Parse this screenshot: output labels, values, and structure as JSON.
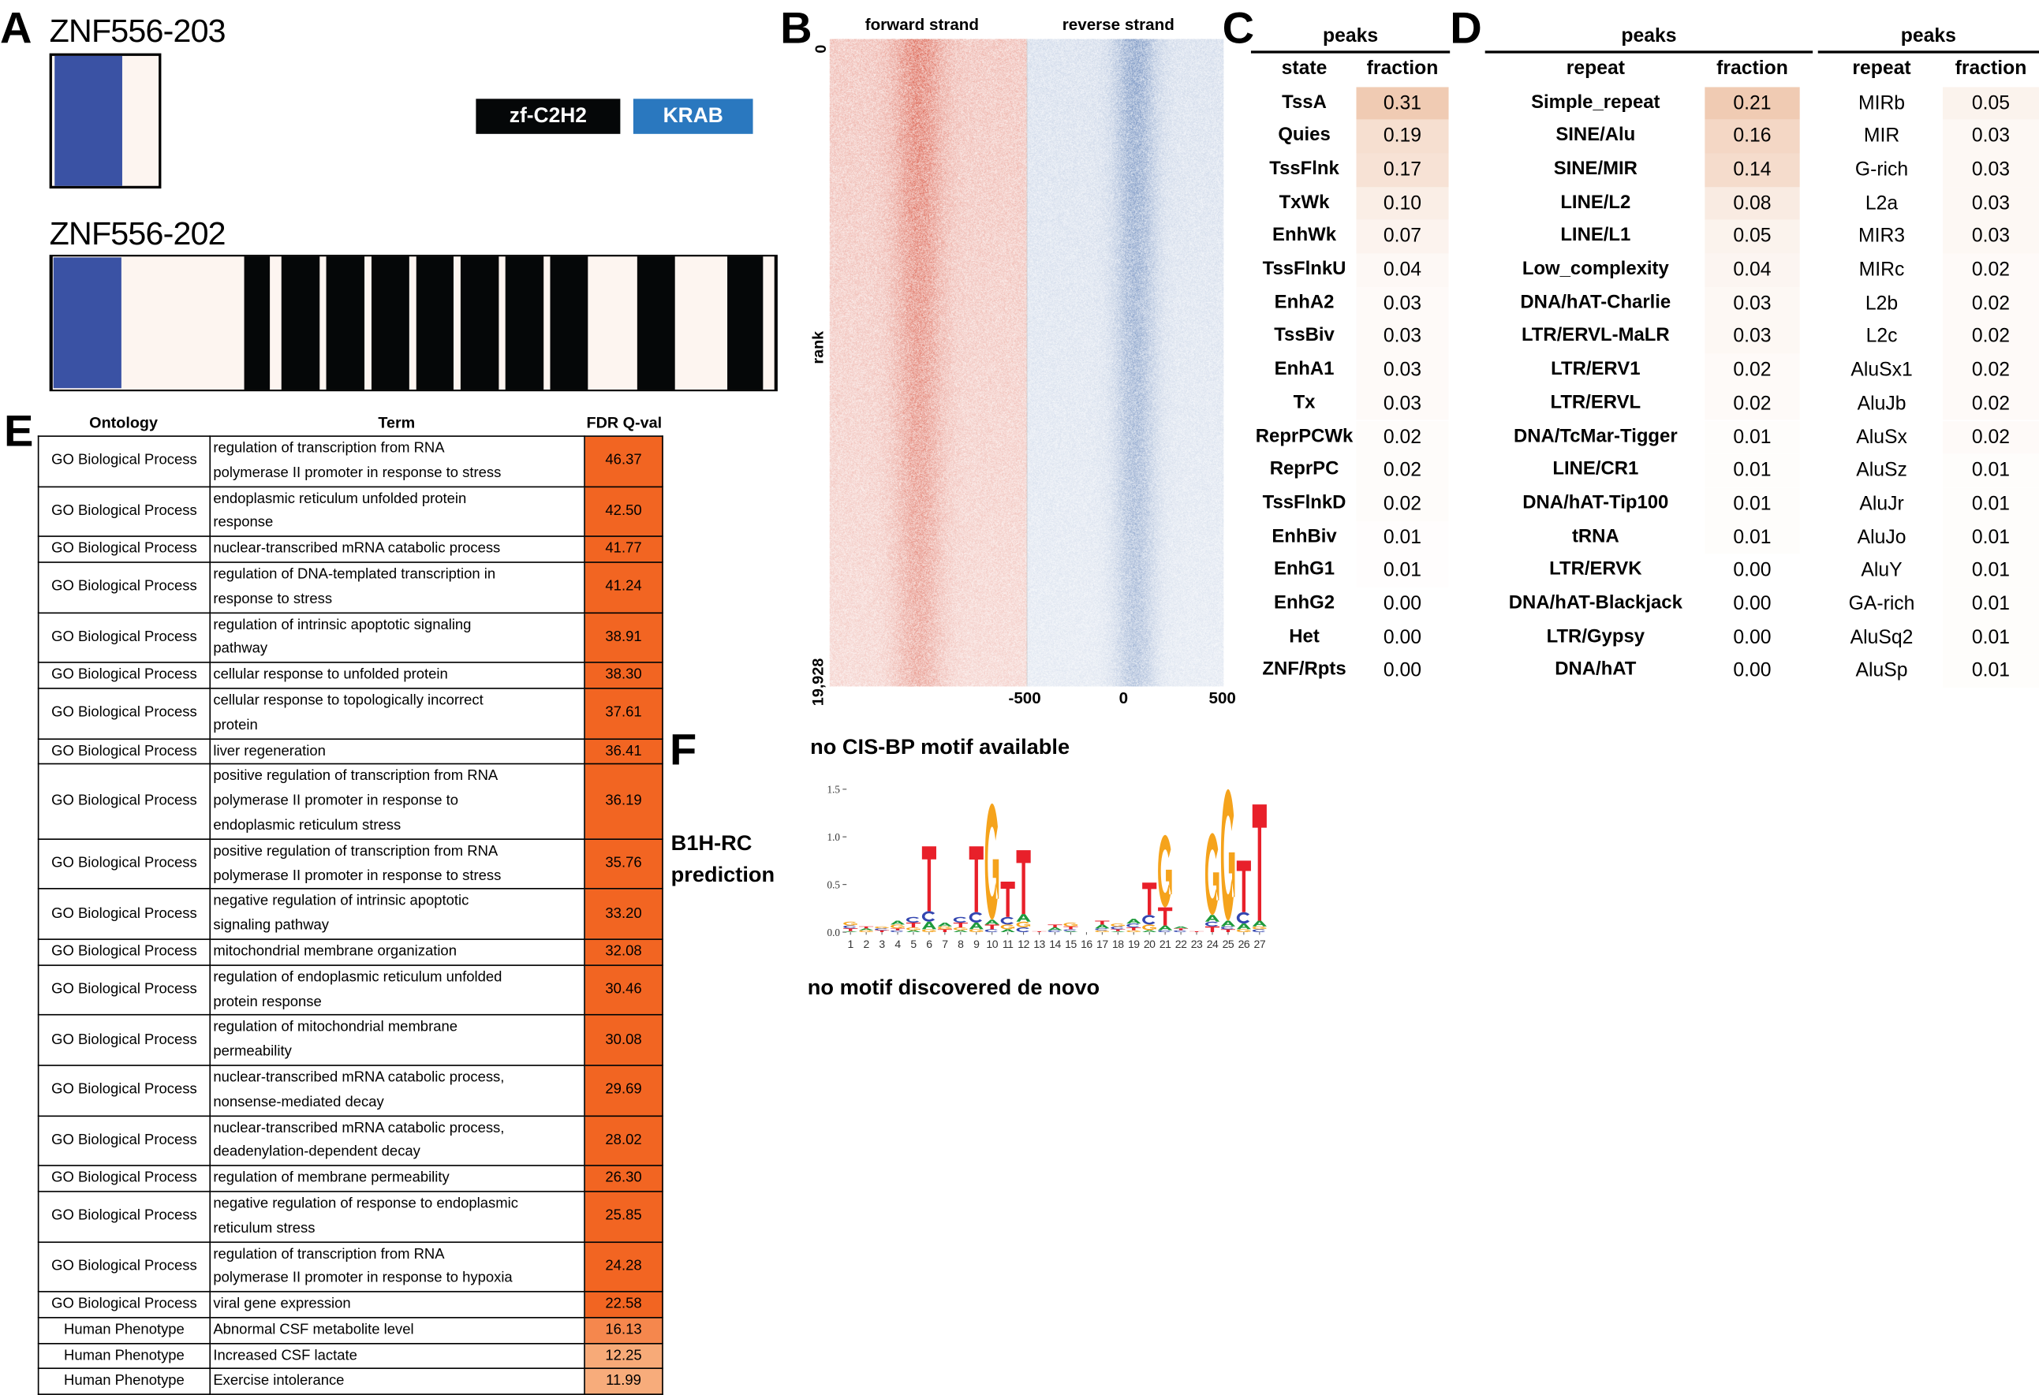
{
  "panel_labels": {
    "a": "A",
    "b": "B",
    "c": "C",
    "d": "D",
    "e": "E",
    "f": "F"
  },
  "panel_a": {
    "isoforms": [
      {
        "name": "ZNF556-203"
      },
      {
        "name": "ZNF556-202"
      }
    ],
    "legend": [
      {
        "label": "zf-C2H2",
        "color": "#050708"
      },
      {
        "label": "KRAB",
        "color": "#2a78bf"
      }
    ],
    "colors": {
      "krab_region": "#3a52a4",
      "background": "#fdf5f0",
      "zf": "#050708"
    }
  },
  "panel_b": {
    "forward_title": "forward strand",
    "reverse_title": "reverse strand",
    "y_label": "rank",
    "y_top": "0",
    "y_bottom": "19,928",
    "x_ticks": [
      "-500",
      "0",
      "500"
    ],
    "colors": {
      "forward": "#d9533a",
      "reverse": "#3b65ad"
    }
  },
  "panel_c": {
    "peaks": "peaks",
    "col_state": "state",
    "col_fraction": "fraction",
    "rows": [
      {
        "label": "TssA",
        "value": "0.31"
      },
      {
        "label": "Quies",
        "value": "0.19"
      },
      {
        "label": "TssFlnk",
        "value": "0.17"
      },
      {
        "label": "TxWk",
        "value": "0.10"
      },
      {
        "label": "EnhWk",
        "value": "0.07"
      },
      {
        "label": "TssFlnkU",
        "value": "0.04"
      },
      {
        "label": "EnhA2",
        "value": "0.03"
      },
      {
        "label": "TssBiv",
        "value": "0.03"
      },
      {
        "label": "EnhA1",
        "value": "0.03"
      },
      {
        "label": "Tx",
        "value": "0.03"
      },
      {
        "label": "ReprPCWk",
        "value": "0.02"
      },
      {
        "label": "ReprPC",
        "value": "0.02"
      },
      {
        "label": "TssFlnkD",
        "value": "0.02"
      },
      {
        "label": "EnhBiv",
        "value": "0.01"
      },
      {
        "label": "EnhG1",
        "value": "0.01"
      },
      {
        "label": "EnhG2",
        "value": "0.00"
      },
      {
        "label": "Het",
        "value": "0.00"
      },
      {
        "label": "ZNF/Rpts",
        "value": "0.00"
      }
    ]
  },
  "panel_d": {
    "peaks": "peaks",
    "col_repeat": "repeat",
    "col_fraction": "fraction",
    "rows": [
      {
        "label": "Simple_repeat",
        "value": "0.21"
      },
      {
        "label": "SINE/Alu",
        "value": "0.16"
      },
      {
        "label": "SINE/MIR",
        "value": "0.14"
      },
      {
        "label": "LINE/L2",
        "value": "0.08"
      },
      {
        "label": "LINE/L1",
        "value": "0.05"
      },
      {
        "label": "Low_complexity",
        "value": "0.04"
      },
      {
        "label": "DNA/hAT-Charlie",
        "value": "0.03"
      },
      {
        "label": "LTR/ERVL-MaLR",
        "value": "0.03"
      },
      {
        "label": "LTR/ERV1",
        "value": "0.02"
      },
      {
        "label": "LTR/ERVL",
        "value": "0.02"
      },
      {
        "label": "DNA/TcMar-Tigger",
        "value": "0.01"
      },
      {
        "label": "LINE/CR1",
        "value": "0.01"
      },
      {
        "label": "DNA/hAT-Tip100",
        "value": "0.01"
      },
      {
        "label": "tRNA",
        "value": "0.01"
      },
      {
        "label": "LTR/ERVK",
        "value": "0.00"
      },
      {
        "label": "DNA/hAT-Blackjack",
        "value": "0.00"
      },
      {
        "label": "LTR/Gypsy",
        "value": "0.00"
      },
      {
        "label": "DNA/hAT",
        "value": "0.00"
      }
    ]
  },
  "panel_d2": {
    "peaks": "peaks",
    "col_repeat": "repeat",
    "col_fraction": "fraction",
    "rows": [
      {
        "label": "MIRb",
        "value": "0.05"
      },
      {
        "label": "MIR",
        "value": "0.03"
      },
      {
        "label": "G-rich",
        "value": "0.03"
      },
      {
        "label": "L2a",
        "value": "0.03"
      },
      {
        "label": "MIR3",
        "value": "0.03"
      },
      {
        "label": "MIRc",
        "value": "0.02"
      },
      {
        "label": "L2b",
        "value": "0.02"
      },
      {
        "label": "L2c",
        "value": "0.02"
      },
      {
        "label": "AluSx1",
        "value": "0.02"
      },
      {
        "label": "AluJb",
        "value": "0.02"
      },
      {
        "label": "AluSx",
        "value": "0.02"
      },
      {
        "label": "AluSz",
        "value": "0.01"
      },
      {
        "label": "AluJr",
        "value": "0.01"
      },
      {
        "label": "AluJo",
        "value": "0.01"
      },
      {
        "label": "AluY",
        "value": "0.01"
      },
      {
        "label": "GA-rich",
        "value": "0.01"
      },
      {
        "label": "AluSq2",
        "value": "0.01"
      },
      {
        "label": "AluSp",
        "value": "0.01"
      }
    ]
  },
  "panel_e": {
    "headers": {
      "ontology": "Ontology",
      "term": "Term",
      "fdr": "FDR Q-val"
    },
    "rows": [
      {
        "ontology": "GO Biological Process",
        "term_lines": [
          "regulation of transcription from RNA",
          "polymerase II promoter in response to stress"
        ],
        "fdr": "46.37"
      },
      {
        "ontology": "GO Biological Process",
        "term_lines": [
          "endoplasmic reticulum unfolded protein",
          "response"
        ],
        "fdr": "42.50"
      },
      {
        "ontology": "GO Biological Process",
        "term_lines": [
          "nuclear-transcribed mRNA catabolic process"
        ],
        "fdr": "41.77"
      },
      {
        "ontology": "GO Biological Process",
        "term_lines": [
          "regulation of DNA-templated transcription in",
          "response to stress"
        ],
        "fdr": "41.24"
      },
      {
        "ontology": "GO Biological Process",
        "term_lines": [
          "regulation of intrinsic apoptotic signaling",
          "pathway"
        ],
        "fdr": "38.91"
      },
      {
        "ontology": "GO Biological Process",
        "term_lines": [
          "cellular response to unfolded protein"
        ],
        "fdr": "38.30"
      },
      {
        "ontology": "GO Biological Process",
        "term_lines": [
          "cellular response to topologically incorrect",
          "protein"
        ],
        "fdr": "37.61"
      },
      {
        "ontology": "GO Biological Process",
        "term_lines": [
          "liver regeneration"
        ],
        "fdr": "36.41"
      },
      {
        "ontology": "GO Biological Process",
        "term_lines": [
          "positive regulation of transcription from RNA",
          "polymerase II promoter in response to",
          "endoplasmic reticulum stress"
        ],
        "fdr": "36.19"
      },
      {
        "ontology": "GO Biological Process",
        "term_lines": [
          "positive regulation of transcription from RNA",
          "polymerase II promoter in response to stress"
        ],
        "fdr": "35.76"
      },
      {
        "ontology": "GO Biological Process",
        "term_lines": [
          "negative regulation of intrinsic apoptotic",
          "signaling pathway"
        ],
        "fdr": "33.20"
      },
      {
        "ontology": "GO Biological Process",
        "term_lines": [
          "mitochondrial membrane organization"
        ],
        "fdr": "32.08"
      },
      {
        "ontology": "GO Biological Process",
        "term_lines": [
          "regulation of endoplasmic reticulum unfolded",
          "protein response"
        ],
        "fdr": "30.46"
      },
      {
        "ontology": "GO Biological Process",
        "term_lines": [
          "regulation of mitochondrial membrane",
          "permeability"
        ],
        "fdr": "30.08"
      },
      {
        "ontology": "GO Biological Process",
        "term_lines": [
          "nuclear-transcribed mRNA catabolic process,",
          "nonsense-mediated decay"
        ],
        "fdr": "29.69"
      },
      {
        "ontology": "GO Biological Process",
        "term_lines": [
          "nuclear-transcribed mRNA catabolic process,",
          "deadenylation-dependent decay"
        ],
        "fdr": "28.02"
      },
      {
        "ontology": "GO Biological Process",
        "term_lines": [
          "regulation of membrane permeability"
        ],
        "fdr": "26.30"
      },
      {
        "ontology": "GO Biological Process",
        "term_lines": [
          "negative regulation of response to endoplasmic",
          "reticulum stress"
        ],
        "fdr": "25.85"
      },
      {
        "ontology": "GO Biological Process",
        "term_lines": [
          "regulation of transcription from RNA",
          "polymerase II promoter in response to hypoxia"
        ],
        "fdr": "24.28"
      },
      {
        "ontology": "GO Biological Process",
        "term_lines": [
          "viral gene expression"
        ],
        "fdr": "22.58"
      },
      {
        "ontology": "Human Phenotype",
        "term_lines": [
          "Abnormal CSF metabolite level"
        ],
        "fdr": "16.13"
      },
      {
        "ontology": "Human Phenotype",
        "term_lines": [
          "Increased CSF lactate"
        ],
        "fdr": "12.25"
      },
      {
        "ontology": "Human Phenotype",
        "term_lines": [
          "Exercise intolerance"
        ],
        "fdr": "11.99"
      }
    ]
  },
  "panel_f": {
    "cisbp_text": "no CIS-BP motif available",
    "b1h_label_1": "B1H-RC",
    "b1h_label_2": "prediction",
    "denovo_text": "no motif discovered de novo"
  },
  "chart_data": {
    "type": "sequence-logo",
    "ylim": [
      0,
      1.5
    ],
    "y_ticks": [
      "0.0",
      "0.5",
      "1.0",
      "1.5"
    ],
    "positions": [
      "1",
      "2",
      "3",
      "4",
      "5",
      "6",
      "7",
      "8",
      "9",
      "10",
      "11",
      "12",
      "13",
      "14",
      "15",
      "16",
      "17",
      "18",
      "19",
      "20",
      "21",
      "22",
      "23",
      "24",
      "25",
      "26",
      "27"
    ],
    "letter_colors": {
      "A": "#1e9a3c",
      "C": "#3346b0",
      "G": "#f5a31c",
      "T": "#e8202a"
    },
    "stacks": [
      [
        [
          "A",
          0.01
        ],
        [
          "T",
          0.03
        ],
        [
          "C",
          0.03
        ],
        [
          "G",
          0.04
        ]
      ],
      [
        [
          "G",
          0.02
        ],
        [
          "A",
          0.02
        ],
        [
          "T",
          0.02
        ]
      ],
      [
        [
          "T",
          0.02
        ],
        [
          "C",
          0.02
        ],
        [
          "G",
          0.02
        ]
      ],
      [
        [
          "C",
          0.02
        ],
        [
          "T",
          0.02
        ],
        [
          "G",
          0.04
        ],
        [
          "A",
          0.04
        ]
      ],
      [
        [
          "A",
          0.02
        ],
        [
          "G",
          0.03
        ],
        [
          "T",
          0.05
        ],
        [
          "C",
          0.06
        ]
      ],
      [
        [
          "G",
          0.03
        ],
        [
          "A",
          0.08
        ],
        [
          "C",
          0.11
        ],
        [
          "T",
          0.68
        ]
      ],
      [
        [
          "T",
          0.03
        ],
        [
          "G",
          0.03
        ],
        [
          "A",
          0.04
        ]
      ],
      [
        [
          "A",
          0.02
        ],
        [
          "G",
          0.03
        ],
        [
          "T",
          0.05
        ],
        [
          "C",
          0.06
        ]
      ],
      [
        [
          "G",
          0.03
        ],
        [
          "A",
          0.07
        ],
        [
          "C",
          0.11
        ],
        [
          "T",
          0.69
        ]
      ],
      [
        [
          "C",
          0.03
        ],
        [
          "T",
          0.05
        ],
        [
          "A",
          0.05
        ],
        [
          "G",
          1.22
        ]
      ],
      [
        [
          "A",
          0.03
        ],
        [
          "G",
          0.05
        ],
        [
          "C",
          0.08
        ],
        [
          "T",
          0.37
        ]
      ],
      [
        [
          "C",
          0.05
        ],
        [
          "G",
          0.06
        ],
        [
          "A",
          0.08
        ],
        [
          "T",
          0.67
        ]
      ],
      [
        [
          "T",
          0.01
        ]
      ],
      [
        [
          "C",
          0.02
        ],
        [
          "A",
          0.03
        ],
        [
          "T",
          0.03
        ]
      ],
      [
        [
          "A",
          0.01
        ],
        [
          "C",
          0.02
        ],
        [
          "T",
          0.03
        ],
        [
          "G",
          0.04
        ]
      ],
      [],
      [
        [
          "G",
          0.02
        ],
        [
          "C",
          0.02
        ],
        [
          "A",
          0.04
        ],
        [
          "T",
          0.04
        ]
      ],
      [
        [
          "A",
          0.01
        ],
        [
          "T",
          0.02
        ],
        [
          "C",
          0.03
        ],
        [
          "G",
          0.03
        ]
      ],
      [
        [
          "G",
          0.02
        ],
        [
          "T",
          0.03
        ],
        [
          "C",
          0.04
        ],
        [
          "A",
          0.05
        ]
      ],
      [
        [
          "A",
          0.02
        ],
        [
          "G",
          0.06
        ],
        [
          "C",
          0.1
        ],
        [
          "T",
          0.34
        ]
      ],
      [
        [
          "C",
          0.02
        ],
        [
          "A",
          0.05
        ],
        [
          "T",
          0.19
        ],
        [
          "G",
          0.76
        ]
      ],
      [
        [
          "C",
          0.02
        ],
        [
          "T",
          0.02
        ],
        [
          "A",
          0.02
        ]
      ],
      [
        [
          "T",
          0.01
        ]
      ],
      [
        [
          "T",
          0.06
        ],
        [
          "C",
          0.05
        ],
        [
          "A",
          0.07
        ],
        [
          "G",
          0.86
        ]
      ],
      [
        [
          "T",
          0.03
        ],
        [
          "C",
          0.03
        ],
        [
          "A",
          0.06
        ],
        [
          "G",
          1.38
        ]
      ],
      [
        [
          "G",
          0.03
        ],
        [
          "A",
          0.06
        ],
        [
          "C",
          0.12
        ],
        [
          "T",
          0.54
        ]
      ],
      [
        [
          "C",
          0.03
        ],
        [
          "G",
          0.03
        ],
        [
          "A",
          0.06
        ],
        [
          "T",
          1.22
        ]
      ]
    ]
  }
}
